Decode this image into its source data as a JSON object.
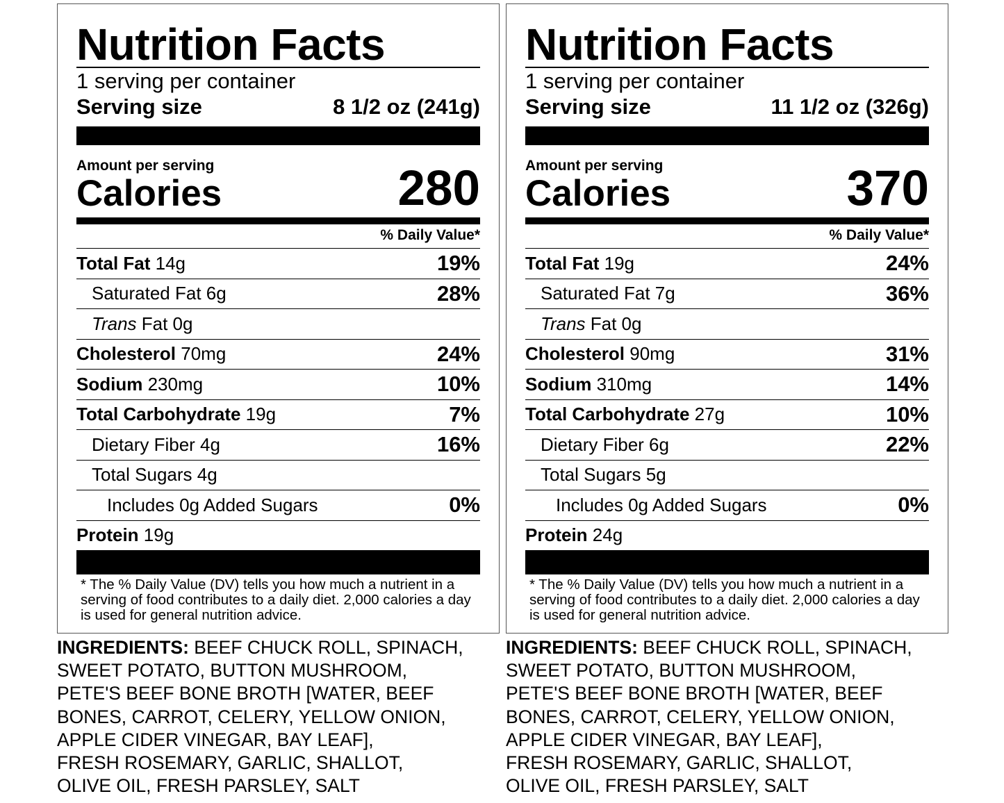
{
  "labels": [
    {
      "title": "Nutrition Facts",
      "servings": "1 serving per container",
      "serving_size_label": "Serving size",
      "serving_size_value": "8 1/2 oz (241g)",
      "amount_per_serving": "Amount per serving",
      "calories_label": "Calories",
      "calories_value": "280",
      "dv_header": "% Daily Value*",
      "rows": [
        {
          "bold": "Total Fat",
          "rest": " 14g",
          "dv": "19%"
        },
        {
          "bold": "",
          "rest": "Saturated Fat 6g",
          "dv": "28%"
        },
        {
          "italic": "Trans",
          "rest": " Fat 0g",
          "dv": ""
        },
        {
          "bold": "Cholesterol",
          "rest": " 70mg",
          "dv": "24%"
        },
        {
          "bold": "Sodium",
          "rest": " 230mg",
          "dv": "10%"
        },
        {
          "bold": "Total Carbohydrate",
          "rest": " 19g",
          "dv": "7%"
        },
        {
          "bold": "",
          "rest": "Dietary Fiber 4g",
          "dv": "16%"
        },
        {
          "bold": "",
          "rest": "Total Sugars 4g",
          "dv": ""
        },
        {
          "bold": "",
          "rest": "Includes 0g Added Sugars",
          "dv": "0%"
        },
        {
          "bold": "Protein",
          "rest": " 19g",
          "dv": ""
        }
      ],
      "footnote": "* The % Daily Value (DV) tells you how much a nutrient in a serving of food contributes to a daily diet. 2,000 calories a day is used for general nutrition advice.",
      "ingredients_label": "INGREDIENTS:",
      "ingredients_lines": [
        " BEEF CHUCK ROLL, SPINACH,",
        "SWEET POTATO, BUTTON MUSHROOM,",
        "PETE'S BEEF BONE BROTH [WATER, BEEF",
        "BONES, CARROT, CELERY, YELLOW ONION,",
        "APPLE CIDER VINEGAR, BAY LEAF],",
        "FRESH ROSEMARY, GARLIC, SHALLOT,",
        "OLIVE OIL, FRESH PARSLEY, SALT"
      ]
    },
    {
      "title": "Nutrition Facts",
      "servings": "1 serving per container",
      "serving_size_label": "Serving size",
      "serving_size_value": "11 1/2 oz (326g)",
      "amount_per_serving": "Amount per serving",
      "calories_label": "Calories",
      "calories_value": "370",
      "dv_header": "% Daily Value*",
      "rows": [
        {
          "bold": "Total Fat",
          "rest": " 19g",
          "dv": "24%"
        },
        {
          "bold": "",
          "rest": "Saturated Fat 7g",
          "dv": "36%"
        },
        {
          "italic": "Trans",
          "rest": " Fat 0g",
          "dv": ""
        },
        {
          "bold": "Cholesterol",
          "rest": " 90mg",
          "dv": "31%"
        },
        {
          "bold": "Sodium",
          "rest": " 310mg",
          "dv": "14%"
        },
        {
          "bold": "Total Carbohydrate",
          "rest": " 27g",
          "dv": "10%"
        },
        {
          "bold": "",
          "rest": "Dietary Fiber 6g",
          "dv": "22%"
        },
        {
          "bold": "",
          "rest": "Total Sugars 5g",
          "dv": ""
        },
        {
          "bold": "",
          "rest": "Includes 0g Added Sugars",
          "dv": "0%"
        },
        {
          "bold": "Protein",
          "rest": " 24g",
          "dv": ""
        }
      ],
      "footnote": "* The % Daily Value (DV) tells you how much a nutrient in a serving of food contributes to a daily diet. 2,000 calories a day is used for general nutrition advice.",
      "ingredients_label": "INGREDIENTS:",
      "ingredients_lines": [
        " BEEF CHUCK ROLL, SPINACH,",
        "SWEET POTATO, BUTTON MUSHROOM,",
        "PETE'S BEEF BONE BROTH [WATER, BEEF",
        "BONES, CARROT, CELERY, YELLOW ONION,",
        "APPLE CIDER VINEGAR, BAY LEAF],",
        "FRESH ROSEMARY, GARLIC, SHALLOT,",
        "OLIVE OIL, FRESH PARSLEY, SALT"
      ]
    }
  ]
}
